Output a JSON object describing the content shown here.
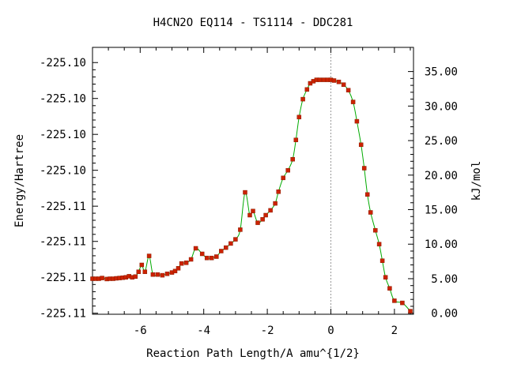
{
  "chart_data": {
    "type": "line",
    "title": "H4CN2O   EQ114 - TS1114 - DDC281",
    "xlabel": "Reaction Path Length/A amu^{1/2}",
    "ylabel_left": "Energy/Hartree",
    "ylabel_right": "kJ/mol",
    "xlim": [
      -7.5,
      2.6
    ],
    "ylim_right_kj": [
      -0.15,
      38.5
    ],
    "x_ticks": [
      -6,
      -4,
      -2,
      0,
      2
    ],
    "x_tick_labels": [
      "-6",
      "-4",
      "-2",
      "0",
      "2"
    ],
    "left_tick_values_kj": [
      0,
      5.2,
      10.4,
      15.5,
      20.7,
      25.9,
      31.1,
      36.3
    ],
    "left_tick_labels": [
      "-225.11",
      "-225.11",
      "-225.11",
      "-225.11",
      "-225.10",
      "-225.10",
      "-225.10",
      "-225.10"
    ],
    "right_ticks": [
      0,
      5,
      10,
      15,
      20,
      25,
      30,
      35
    ],
    "right_tick_labels": [
      "0.00",
      "5.00",
      "10.00",
      "15.00",
      "20.00",
      "25.00",
      "30.00",
      "35.00"
    ],
    "vline_x": 0,
    "grid": false,
    "legend": "none",
    "line_color": "#00aa00",
    "marker_color": "#cc2200",
    "series": [
      {
        "x": [
          -7.5,
          -7.4,
          -7.3,
          -7.2,
          -7.05,
          -6.95,
          -6.85,
          -6.75,
          -6.65,
          -6.55,
          -6.45,
          -6.35,
          -6.25,
          -6.15,
          -6.05,
          -5.95,
          -5.85,
          -5.72,
          -5.6,
          -5.45,
          -5.3,
          -5.15,
          -5.0,
          -4.9,
          -4.8,
          -4.7,
          -4.55,
          -4.4,
          -4.25,
          -4.05,
          -3.9,
          -3.75,
          -3.6,
          -3.45,
          -3.3,
          -3.15,
          -3.0,
          -2.85,
          -2.7,
          -2.55,
          -2.45,
          -2.3,
          -2.15,
          -2.05,
          -1.9,
          -1.75,
          -1.65,
          -1.5,
          -1.35,
          -1.2,
          -1.1,
          -1.0,
          -0.88,
          -0.75,
          -0.65,
          -0.55,
          -0.45,
          -0.35,
          -0.22,
          -0.1,
          0.0,
          0.1,
          0.25,
          0.4,
          0.55,
          0.7,
          0.82,
          0.95,
          1.05,
          1.15,
          1.25,
          1.4,
          1.52,
          1.62,
          1.72,
          1.85,
          2.0,
          2.25,
          2.5
        ],
        "y": [
          5.0,
          5.0,
          5.0,
          5.1,
          4.95,
          5.0,
          5.0,
          5.05,
          5.1,
          5.15,
          5.2,
          5.35,
          5.2,
          5.3,
          6.0,
          7.0,
          6.0,
          8.3,
          5.6,
          5.6,
          5.5,
          5.7,
          5.9,
          6.1,
          6.5,
          7.2,
          7.3,
          7.8,
          9.4,
          8.6,
          8.0,
          8.0,
          8.2,
          9.0,
          9.5,
          10.1,
          10.7,
          12.1,
          17.5,
          14.2,
          14.8,
          13.1,
          13.6,
          14.2,
          14.9,
          15.9,
          17.6,
          19.6,
          20.7,
          22.3,
          25.1,
          28.4,
          31.0,
          32.4,
          33.3,
          33.6,
          33.8,
          33.8,
          33.8,
          33.8,
          33.8,
          33.7,
          33.5,
          33.1,
          32.3,
          30.6,
          27.8,
          24.4,
          21.0,
          17.2,
          14.6,
          12.0,
          10.0,
          7.6,
          5.2,
          3.6,
          1.8,
          1.5,
          0.3
        ]
      }
    ]
  }
}
